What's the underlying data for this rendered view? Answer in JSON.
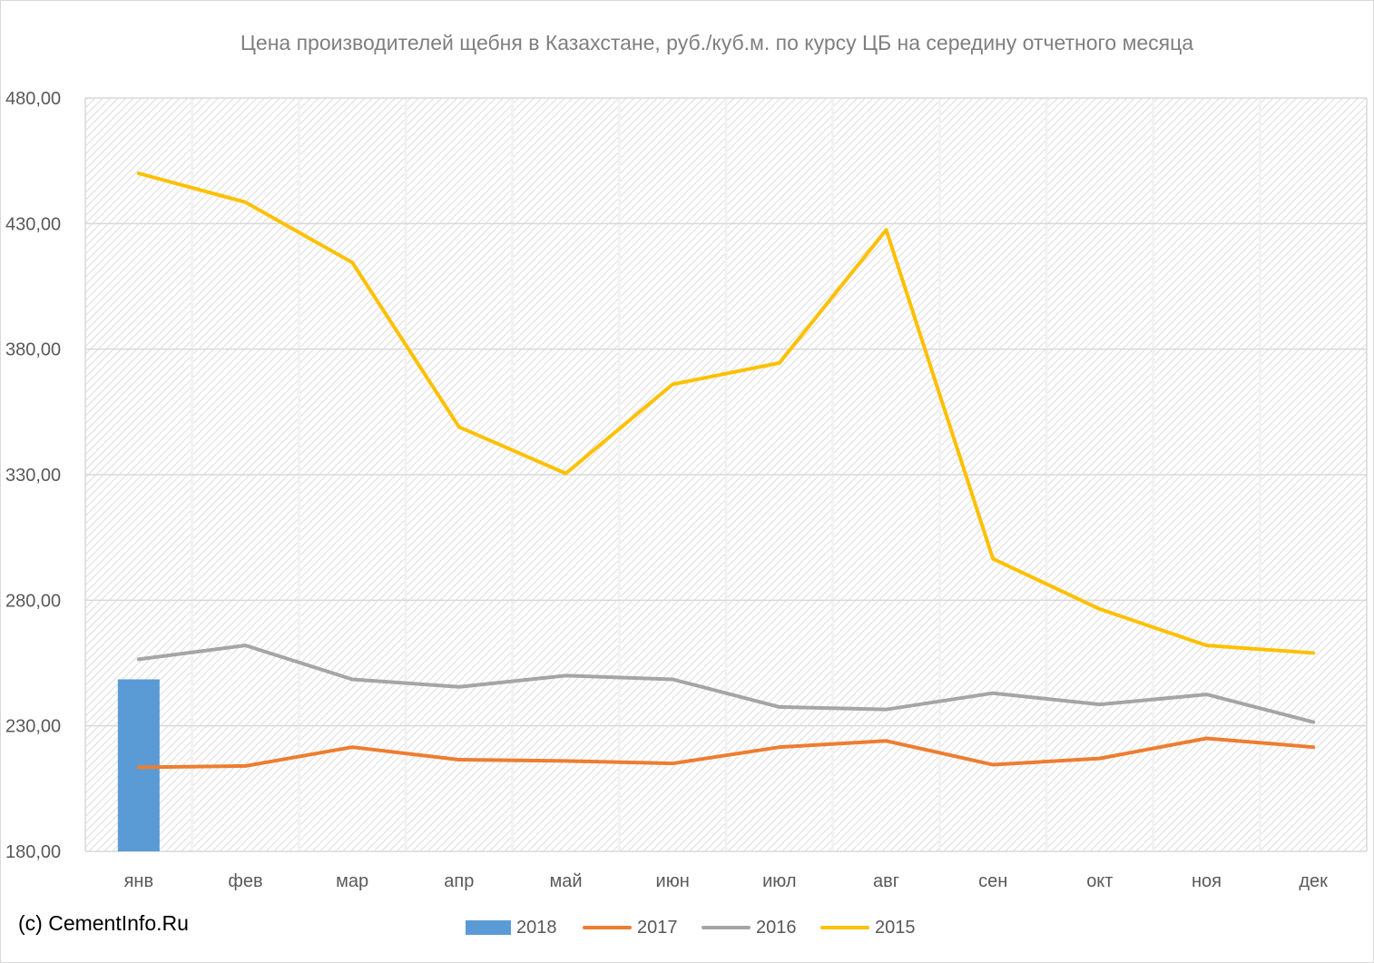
{
  "chart_data": {
    "type": "line",
    "title": "Цена производителей щебня в Казахстане, руб./куб.м. по курсу ЦБ на середину отчетного месяца",
    "categories": [
      "янв",
      "фев",
      "мар",
      "апр",
      "май",
      "июн",
      "июл",
      "авг",
      "сен",
      "окт",
      "ноя",
      "дек"
    ],
    "ylim": [
      180,
      480
    ],
    "yticks": [
      "180,00",
      "230,00",
      "280,00",
      "330,00",
      "380,00",
      "430,00",
      "480,00"
    ],
    "ytick_values": [
      180,
      230,
      280,
      330,
      380,
      430,
      480
    ],
    "grid": true,
    "legend_position": "bottom",
    "series": [
      {
        "name": "2018",
        "type": "bar",
        "color": "#5b9bd5",
        "values": [
          248.5,
          null,
          null,
          null,
          null,
          null,
          null,
          null,
          null,
          null,
          null,
          null
        ]
      },
      {
        "name": "2017",
        "type": "line",
        "color": "#ed7d31",
        "values": [
          213.5,
          214,
          221.5,
          216.5,
          216,
          215,
          221.5,
          224,
          214.5,
          217,
          225,
          221.5
        ]
      },
      {
        "name": "2016",
        "type": "line",
        "color": "#a5a5a5",
        "values": [
          256.5,
          262,
          248.5,
          245.5,
          250,
          248.5,
          237.5,
          236.5,
          243,
          238.5,
          242.5,
          231.5
        ]
      },
      {
        "name": "2015",
        "type": "line",
        "color": "#ffc000",
        "values": [
          450,
          438.5,
          414.5,
          349,
          330.5,
          366,
          374.5,
          427.5,
          296.5,
          276.5,
          262,
          259
        ]
      }
    ]
  },
  "copyright": "(c) CementInfo.Ru"
}
